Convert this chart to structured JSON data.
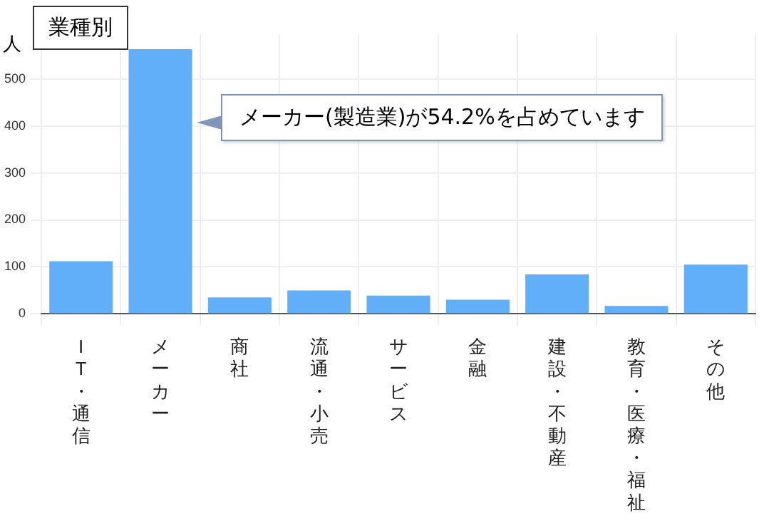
{
  "chart_data": {
    "type": "bar",
    "title": "業種別",
    "ylabel": "人",
    "categories": [
      "I T・通信",
      "メーカー",
      "商社",
      "流通・小売",
      "サービス",
      "金融",
      "建設・不動産",
      "教育・医療・福祉",
      "その他"
    ],
    "values": [
      112,
      563,
      35,
      50,
      39,
      30,
      84,
      17,
      105
    ],
    "color": "#61aef9",
    "ylim": [
      0,
      595
    ],
    "yticks": [
      0,
      100,
      200,
      300,
      400,
      500
    ],
    "grid": true,
    "annotations": [
      "メーカー(製造業)が54.2%を占めています"
    ]
  }
}
